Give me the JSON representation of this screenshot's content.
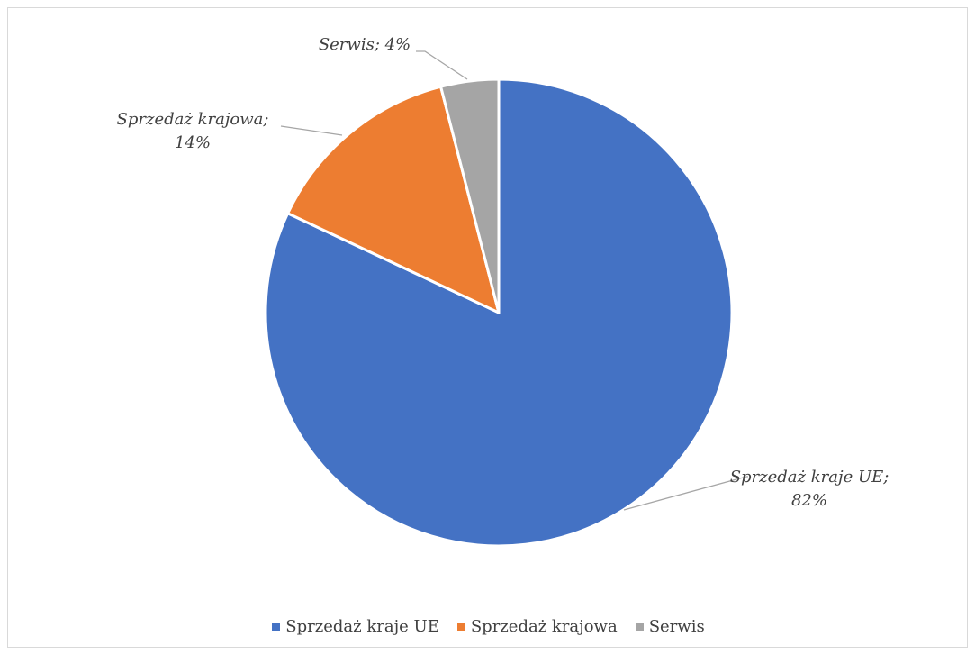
{
  "chart_data": {
    "type": "pie",
    "title": "",
    "categories": [
      "Sprzedaż kraje UE",
      "Sprzedaż krajowa",
      "Serwis"
    ],
    "values": [
      82,
      14,
      4
    ],
    "colors": [
      "#4472c4",
      "#ed7d31",
      "#a5a5a5"
    ],
    "data_labels": [
      [
        "Sprzedaż kraje UE;",
        "82%"
      ],
      [
        "Sprzedaż krajowa;",
        "14%"
      ],
      [
        "Serwis; 4%"
      ]
    ],
    "legend_position": "bottom"
  }
}
